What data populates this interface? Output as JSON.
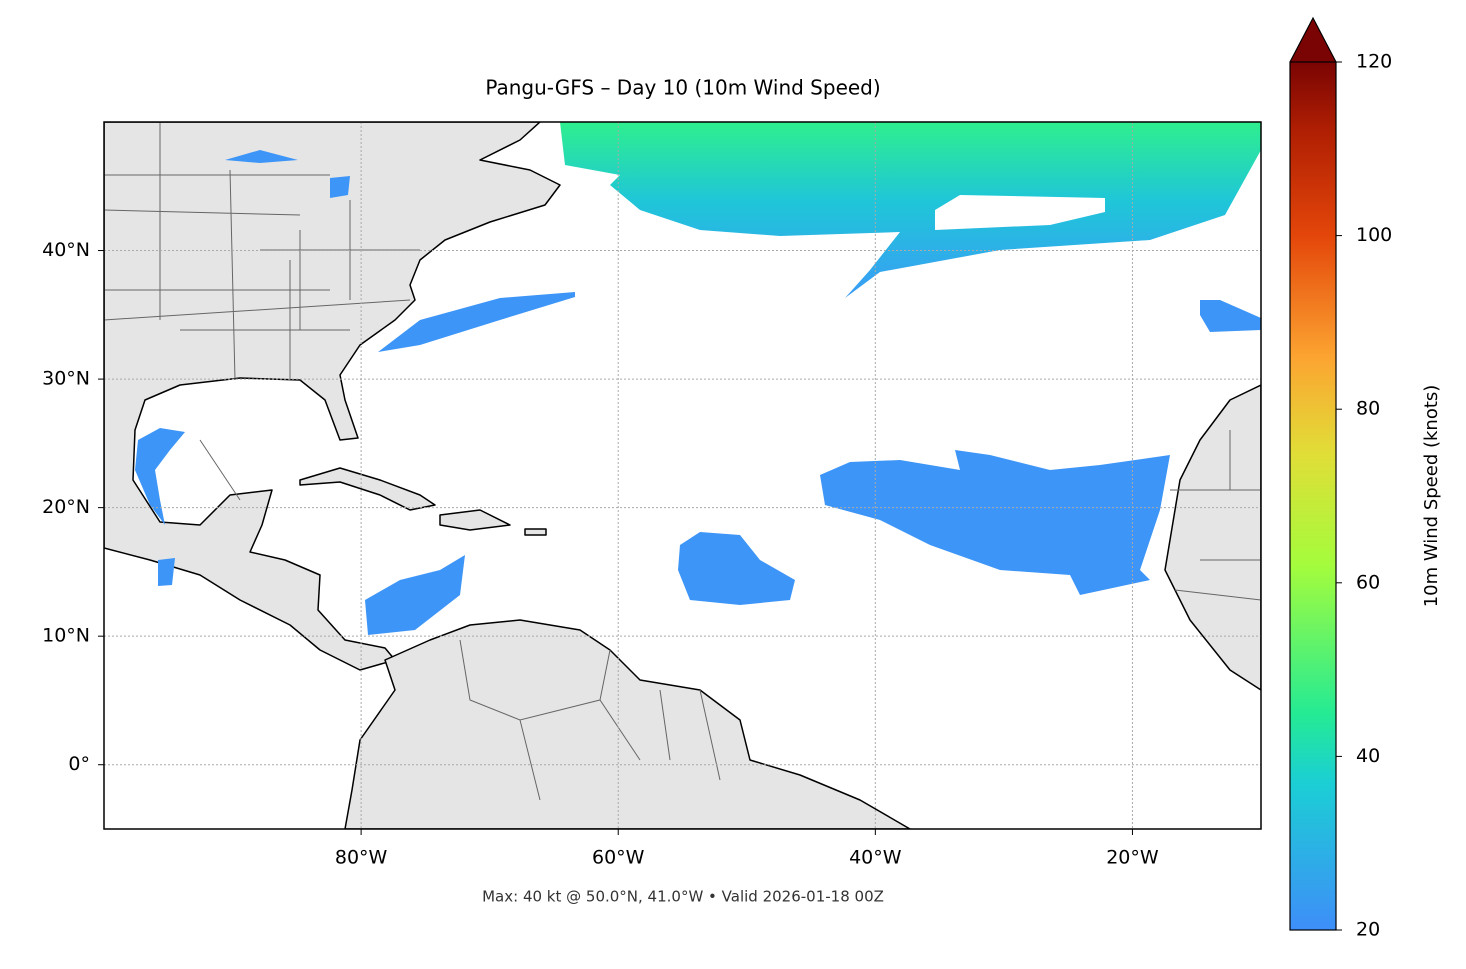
{
  "map": {
    "title": "Pangu-GFS – Day 10 (10m Wind Speed)",
    "footer": "Max: 40 kt @ 50.0°N, 41.0°W • Valid 2026-01-18 00Z",
    "xlim": [
      -100,
      -10
    ],
    "ylim": [
      -5,
      50
    ],
    "xticks": [
      {
        "value": -80,
        "label": "80°W"
      },
      {
        "value": -60,
        "label": "60°W"
      },
      {
        "value": -40,
        "label": "40°W"
      },
      {
        "value": -20,
        "label": "20°W"
      }
    ],
    "yticks": [
      {
        "value": 0,
        "label": "0°"
      },
      {
        "value": 10,
        "label": "10°N"
      },
      {
        "value": 20,
        "label": "20°N"
      },
      {
        "value": 30,
        "label": "30°N"
      },
      {
        "value": 40,
        "label": "40°N"
      }
    ],
    "grid": true
  },
  "colorbar": {
    "label": "10m Wind Speed (knots)",
    "lim": [
      20,
      120
    ],
    "ticks": [
      20,
      40,
      60,
      80,
      100,
      120
    ]
  }
}
